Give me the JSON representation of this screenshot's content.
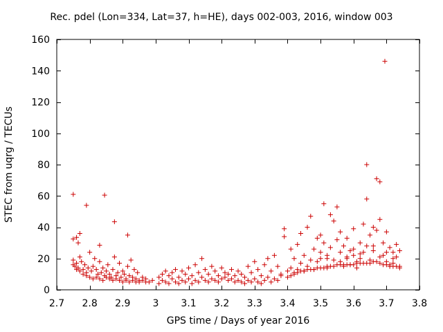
{
  "chart_data": {
    "type": "scatter",
    "title": "Rec. pdel (Lon=334, Lat=37, h=HE), days 002-003, 2016, window 003",
    "xlabel": "GPS time / Days of year 2016",
    "ylabel": "STEC from uqrg / TECUs",
    "xlim": [
      2.7,
      3.8
    ],
    "ylim": [
      0,
      160
    ],
    "xticks": [
      2.7,
      2.8,
      2.9,
      3.0,
      3.1,
      3.2,
      3.3,
      3.4,
      3.5,
      3.6,
      3.7,
      3.8
    ],
    "xtick_labels": [
      "2.7",
      "2.8",
      "2.9",
      "3",
      "3.1",
      "3.2",
      "3.3",
      "3.4",
      "3.5",
      "3.6",
      "3.7",
      "3.8"
    ],
    "yticks": [
      0,
      20,
      40,
      60,
      80,
      100,
      120,
      140,
      160
    ],
    "ytick_labels": [
      "0",
      "20",
      "40",
      "60",
      "80",
      "100",
      "120",
      "140",
      "160"
    ],
    "grid": false,
    "marker": "+",
    "marker_color": "#cc0000",
    "series": [
      {
        "name": "STEC",
        "points": [
          [
            2.75,
            61
          ],
          [
            2.79,
            54
          ],
          [
            2.845,
            60.5
          ],
          [
            2.875,
            43.5
          ],
          [
            2.915,
            35
          ],
          [
            2.75,
            32.5
          ],
          [
            2.76,
            33.5
          ],
          [
            2.77,
            36
          ],
          [
            2.765,
            30
          ],
          [
            2.83,
            28.5
          ],
          [
            2.75,
            19
          ],
          [
            2.75,
            16
          ],
          [
            2.755,
            15
          ],
          [
            2.76,
            17
          ],
          [
            2.765,
            14
          ],
          [
            2.77,
            21
          ],
          [
            2.775,
            18
          ],
          [
            2.78,
            13
          ],
          [
            2.785,
            16
          ],
          [
            2.79,
            11
          ],
          [
            2.795,
            14
          ],
          [
            2.8,
            24
          ],
          [
            2.805,
            12
          ],
          [
            2.81,
            15
          ],
          [
            2.815,
            20
          ],
          [
            2.82,
            13
          ],
          [
            2.825,
            10
          ],
          [
            2.83,
            18
          ],
          [
            2.835,
            11
          ],
          [
            2.84,
            14
          ],
          [
            2.845,
            9
          ],
          [
            2.85,
            12
          ],
          [
            2.855,
            16
          ],
          [
            2.86,
            10
          ],
          [
            2.865,
            8
          ],
          [
            2.87,
            13
          ],
          [
            2.875,
            21
          ],
          [
            2.88,
            9
          ],
          [
            2.885,
            11
          ],
          [
            2.89,
            17
          ],
          [
            2.895,
            8
          ],
          [
            2.9,
            12
          ],
          [
            2.905,
            10
          ],
          [
            2.91,
            7
          ],
          [
            2.915,
            15
          ],
          [
            2.92,
            9
          ],
          [
            2.925,
            19
          ],
          [
            2.93,
            8
          ],
          [
            2.935,
            13
          ],
          [
            2.94,
            7
          ],
          [
            2.945,
            11
          ],
          [
            2.95,
            6
          ],
          [
            2.96,
            8
          ],
          [
            2.97,
            7
          ],
          [
            2.98,
            5
          ],
          [
            2.99,
            6
          ],
          [
            2.76,
            13
          ],
          [
            2.77,
            12
          ],
          [
            2.78,
            10
          ],
          [
            2.79,
            9
          ],
          [
            2.8,
            8
          ],
          [
            2.81,
            7
          ],
          [
            2.82,
            8
          ],
          [
            2.83,
            7
          ],
          [
            2.84,
            6
          ],
          [
            2.85,
            8
          ],
          [
            2.86,
            7
          ],
          [
            2.87,
            6
          ],
          [
            2.88,
            7
          ],
          [
            2.89,
            6
          ],
          [
            2.9,
            5
          ],
          [
            2.91,
            6
          ],
          [
            2.92,
            5
          ],
          [
            2.93,
            6
          ],
          [
            2.94,
            5
          ],
          [
            2.95,
            5
          ],
          [
            2.96,
            6
          ],
          [
            2.97,
            5
          ],
          [
            3.01,
            8
          ],
          [
            3.01,
            4
          ],
          [
            3.02,
            10
          ],
          [
            3.02,
            6
          ],
          [
            3.03,
            12
          ],
          [
            3.03,
            5
          ],
          [
            3.04,
            9
          ],
          [
            3.04,
            4
          ],
          [
            3.05,
            11
          ],
          [
            3.05,
            7
          ],
          [
            3.06,
            13
          ],
          [
            3.06,
            5
          ],
          [
            3.07,
            8
          ],
          [
            3.07,
            4
          ],
          [
            3.08,
            12
          ],
          [
            3.08,
            6
          ],
          [
            3.09,
            10
          ],
          [
            3.09,
            5
          ],
          [
            3.1,
            14
          ],
          [
            3.1,
            7
          ],
          [
            3.11,
            9
          ],
          [
            3.11,
            4
          ],
          [
            3.12,
            16
          ],
          [
            3.12,
            6
          ],
          [
            3.13,
            11
          ],
          [
            3.13,
            5
          ],
          [
            3.14,
            20
          ],
          [
            3.14,
            8
          ],
          [
            3.15,
            13
          ],
          [
            3.15,
            6
          ],
          [
            3.16,
            10
          ],
          [
            3.16,
            5
          ],
          [
            3.17,
            15
          ],
          [
            3.17,
            7
          ],
          [
            3.18,
            12
          ],
          [
            3.18,
            6
          ],
          [
            3.19,
            9
          ],
          [
            3.19,
            5
          ],
          [
            3.2,
            14
          ],
          [
            3.2,
            7
          ],
          [
            3.21,
            11
          ],
          [
            3.21,
            8
          ],
          [
            3.22,
            10
          ],
          [
            3.22,
            6
          ],
          [
            3.23,
            13
          ],
          [
            3.23,
            7
          ],
          [
            3.24,
            9
          ],
          [
            3.24,
            5
          ],
          [
            3.25,
            12
          ],
          [
            3.25,
            6
          ],
          [
            3.26,
            10
          ],
          [
            3.26,
            5
          ],
          [
            3.27,
            8
          ],
          [
            3.27,
            4
          ],
          [
            3.28,
            15
          ],
          [
            3.28,
            6
          ],
          [
            3.29,
            11
          ],
          [
            3.29,
            5
          ],
          [
            3.3,
            18
          ],
          [
            3.3,
            7
          ],
          [
            3.31,
            13
          ],
          [
            3.31,
            5
          ],
          [
            3.32,
            9
          ],
          [
            3.32,
            4
          ],
          [
            3.33,
            16
          ],
          [
            3.33,
            6
          ],
          [
            3.34,
            20
          ],
          [
            3.34,
            8
          ],
          [
            3.35,
            12
          ],
          [
            3.35,
            5
          ],
          [
            3.36,
            22
          ],
          [
            3.36,
            7
          ],
          [
            3.37,
            15
          ],
          [
            3.37,
            6
          ],
          [
            3.38,
            10
          ],
          [
            3.38,
            9
          ],
          [
            3.39,
            39
          ],
          [
            3.39,
            34
          ],
          [
            3.4,
            12
          ],
          [
            3.41,
            26
          ],
          [
            3.41,
            14
          ],
          [
            3.42,
            20
          ],
          [
            3.42,
            11
          ],
          [
            3.43,
            29
          ],
          [
            3.43,
            13
          ],
          [
            3.44,
            36
          ],
          [
            3.44,
            17
          ],
          [
            3.45,
            22
          ],
          [
            3.45,
            12
          ],
          [
            3.46,
            40
          ],
          [
            3.46,
            15
          ],
          [
            3.47,
            47
          ],
          [
            3.47,
            19
          ],
          [
            3.48,
            26
          ],
          [
            3.48,
            13
          ],
          [
            3.49,
            33
          ],
          [
            3.49,
            18
          ],
          [
            3.5,
            35
          ],
          [
            3.5,
            24
          ],
          [
            3.51,
            55
          ],
          [
            3.51,
            30
          ],
          [
            3.52,
            20
          ],
          [
            3.52,
            14
          ],
          [
            3.53,
            48
          ],
          [
            3.53,
            27
          ],
          [
            3.54,
            44
          ],
          [
            3.55,
            53
          ],
          [
            3.55,
            32
          ],
          [
            3.56,
            37
          ],
          [
            3.56,
            18
          ],
          [
            3.57,
            28
          ],
          [
            3.57,
            15
          ],
          [
            3.58,
            21
          ],
          [
            3.58,
            33
          ],
          [
            3.59,
            25
          ],
          [
            3.59,
            16
          ],
          [
            3.6,
            39
          ],
          [
            3.6,
            22
          ],
          [
            3.61,
            18
          ],
          [
            3.61,
            14
          ],
          [
            3.62,
            30
          ],
          [
            3.62,
            20
          ],
          [
            3.63,
            42
          ],
          [
            3.63,
            24
          ],
          [
            3.64,
            80
          ],
          [
            3.64,
            58
          ],
          [
            3.65,
            35
          ],
          [
            3.65,
            19
          ],
          [
            3.66,
            40
          ],
          [
            3.66,
            28
          ],
          [
            3.67,
            71
          ],
          [
            3.67,
            38
          ],
          [
            3.68,
            69
          ],
          [
            3.68,
            45
          ],
          [
            3.69,
            30
          ],
          [
            3.69,
            22
          ],
          [
            3.695,
            146
          ],
          [
            3.7,
            37
          ],
          [
            3.7,
            18
          ],
          [
            3.71,
            27
          ],
          [
            3.71,
            15
          ],
          [
            3.72,
            24
          ],
          [
            3.72,
            17
          ],
          [
            3.73,
            29
          ],
          [
            3.73,
            21
          ],
          [
            3.74,
            25
          ],
          [
            3.74,
            15
          ],
          [
            3.4,
            8
          ],
          [
            3.41,
            9
          ],
          [
            3.42,
            10
          ],
          [
            3.43,
            11
          ],
          [
            3.44,
            12
          ],
          [
            3.45,
            12
          ],
          [
            3.46,
            13
          ],
          [
            3.47,
            13
          ],
          [
            3.48,
            13
          ],
          [
            3.49,
            14
          ],
          [
            3.5,
            14
          ],
          [
            3.51,
            14
          ],
          [
            3.52,
            15
          ],
          [
            3.53,
            15
          ],
          [
            3.54,
            15
          ],
          [
            3.55,
            16
          ],
          [
            3.56,
            16
          ],
          [
            3.57,
            16
          ],
          [
            3.58,
            16
          ],
          [
            3.59,
            16
          ],
          [
            3.6,
            16
          ],
          [
            3.61,
            17
          ],
          [
            3.62,
            17
          ],
          [
            3.63,
            17
          ],
          [
            3.64,
            17
          ],
          [
            3.65,
            17
          ],
          [
            3.66,
            18
          ],
          [
            3.67,
            18
          ],
          [
            3.68,
            17
          ],
          [
            3.69,
            16
          ],
          [
            3.7,
            16
          ],
          [
            3.71,
            16
          ],
          [
            3.72,
            15
          ],
          [
            3.73,
            15
          ],
          [
            3.74,
            14
          ],
          [
            3.5,
            20
          ],
          [
            3.52,
            22
          ],
          [
            3.54,
            19
          ],
          [
            3.56,
            24
          ],
          [
            3.58,
            20
          ],
          [
            3.6,
            26
          ],
          [
            3.62,
            23
          ],
          [
            3.64,
            28
          ],
          [
            3.66,
            25
          ],
          [
            3.68,
            21
          ],
          [
            3.7,
            24
          ],
          [
            3.72,
            20
          ]
        ]
      }
    ]
  }
}
